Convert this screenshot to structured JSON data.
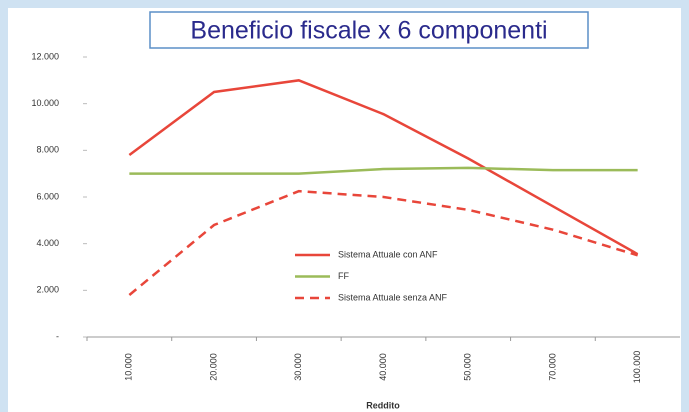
{
  "chart_data": {
    "type": "line",
    "title": "Beneficio fiscale x 6 componenti",
    "x_label": "Reddito",
    "categories": [
      "10.000",
      "20.000",
      "30.000",
      "40.000",
      "50.000",
      "70.000",
      "100.000"
    ],
    "series": [
      {
        "name": "Sistema Attuale con ANF",
        "color": "#e8463a",
        "line_style": "solid",
        "values": [
          7800,
          10500,
          11000,
          9550,
          7650,
          5600,
          3550
        ]
      },
      {
        "name": "FF",
        "color": "#9bbb59",
        "line_style": "solid",
        "values": [
          7000,
          7000,
          7000,
          7200,
          7250,
          7150,
          7150
        ]
      },
      {
        "name": "Sistema Attuale senza ANF",
        "color": "#e8463a",
        "line_style": "dashed",
        "values": [
          1800,
          4800,
          6250,
          6000,
          5450,
          4600,
          3500
        ]
      }
    ],
    "ylim": [
      0,
      12000
    ],
    "yticks": [
      {
        "value": 0,
        "label": "-"
      },
      {
        "value": 2000,
        "label": "2.000"
      },
      {
        "value": 4000,
        "label": "4.000"
      },
      {
        "value": 6000,
        "label": "6.000"
      },
      {
        "value": 8000,
        "label": "8.000"
      },
      {
        "value": 10000,
        "label": "10.000"
      },
      {
        "value": 12000,
        "label": "12.000"
      }
    ],
    "grid": false
  }
}
